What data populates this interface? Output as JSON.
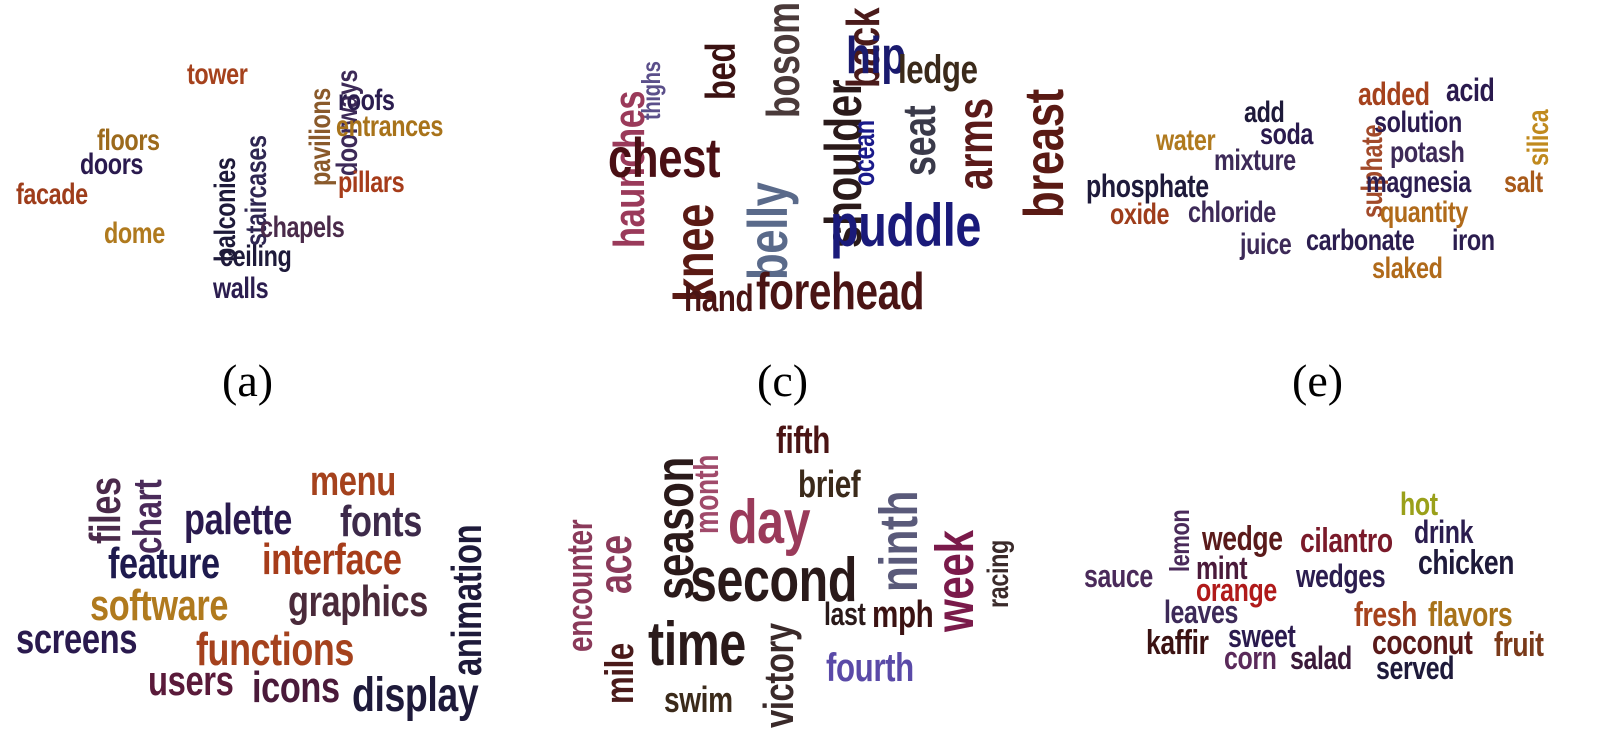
{
  "captions": {
    "a": "(a)",
    "c": "(c)",
    "e": "(e)"
  },
  "clouds": {
    "a": {
      "words": [
        {
          "text": "tower",
          "color": "#a5421d"
        },
        {
          "text": "pavilions",
          "color": "#8a5a2b"
        },
        {
          "text": "doorways",
          "color": "#3d2a58"
        },
        {
          "text": "roofs",
          "color": "#2b1d4f"
        },
        {
          "text": "entrances",
          "color": "#a8731a"
        },
        {
          "text": "floors",
          "color": "#9c6a1c"
        },
        {
          "text": "doors",
          "color": "#2a1a4e"
        },
        {
          "text": "balconies",
          "color": "#1e1a3a"
        },
        {
          "text": "staircases",
          "color": "#2f2752"
        },
        {
          "text": "pillars",
          "color": "#a63c1a"
        },
        {
          "text": "facade",
          "color": "#9e3d1b"
        },
        {
          "text": "chapels",
          "color": "#4a2a4a"
        },
        {
          "text": "dome",
          "color": "#b07a1e"
        },
        {
          "text": "ceiling",
          "color": "#1e1a3a"
        },
        {
          "text": "walls",
          "color": "#2b1d4f"
        }
      ]
    },
    "c": {
      "words": [
        {
          "text": "thighs",
          "color": "#5b4f8a"
        },
        {
          "text": "bed",
          "color": "#3b1212"
        },
        {
          "text": "bosom",
          "color": "#4a3a3a"
        },
        {
          "text": "back",
          "color": "#4a1a1a"
        },
        {
          "text": "hip",
          "color": "#1a1a6e"
        },
        {
          "text": "ledge",
          "color": "#3b2a1a"
        },
        {
          "text": "haunches",
          "color": "#9a3a5a"
        },
        {
          "text": "chest",
          "color": "#4a0f14"
        },
        {
          "text": "shoulder",
          "color": "#2a1a1a"
        },
        {
          "text": "ocean",
          "color": "#1a1a8a"
        },
        {
          "text": "seat",
          "color": "#3a3a4a"
        },
        {
          "text": "arms",
          "color": "#5a1a1a"
        },
        {
          "text": "breast",
          "color": "#5a1a14"
        },
        {
          "text": "knee",
          "color": "#5a1a14"
        },
        {
          "text": "belly",
          "color": "#5a6a8a"
        },
        {
          "text": "puddle",
          "color": "#1a1a7a"
        },
        {
          "text": "hand",
          "color": "#4a1414"
        },
        {
          "text": "forehead",
          "color": "#4a1414"
        }
      ]
    },
    "e": {
      "words": [
        {
          "text": "add",
          "color": "#1e1a3a"
        },
        {
          "text": "sulphate",
          "color": "#a24a2a"
        },
        {
          "text": "added",
          "color": "#a5421d"
        },
        {
          "text": "acid",
          "color": "#2a1a4e"
        },
        {
          "text": "water",
          "color": "#b07a1e"
        },
        {
          "text": "soda",
          "color": "#2a1a4e"
        },
        {
          "text": "solution",
          "color": "#2a1a4e"
        },
        {
          "text": "silica",
          "color": "#c08a1e"
        },
        {
          "text": "mixture",
          "color": "#3d2a58"
        },
        {
          "text": "potash",
          "color": "#3d2a58"
        },
        {
          "text": "phosphate",
          "color": "#1e1a3a"
        },
        {
          "text": "magnesia",
          "color": "#2b1d4f"
        },
        {
          "text": "salt",
          "color": "#a85a1a"
        },
        {
          "text": "oxide",
          "color": "#9e3d1b"
        },
        {
          "text": "chloride",
          "color": "#3d2a58"
        },
        {
          "text": "quantity",
          "color": "#b06a1a"
        },
        {
          "text": "juice",
          "color": "#3d2a58"
        },
        {
          "text": "carbonate",
          "color": "#2b1d4f"
        },
        {
          "text": "iron",
          "color": "#2b1d4f"
        },
        {
          "text": "slaked",
          "color": "#b06a1a"
        }
      ]
    },
    "b": {
      "words": [
        {
          "text": "files",
          "color": "#4a2a4a"
        },
        {
          "text": "chart",
          "color": "#4a2a5a"
        },
        {
          "text": "menu",
          "color": "#a5421d"
        },
        {
          "text": "palette",
          "color": "#2a1a4e"
        },
        {
          "text": "fonts",
          "color": "#3d2a4a"
        },
        {
          "text": "animation",
          "color": "#1e1a3a"
        },
        {
          "text": "feature",
          "color": "#1e1a4e"
        },
        {
          "text": "interface",
          "color": "#a63c1a"
        },
        {
          "text": "software",
          "color": "#b07a1e"
        },
        {
          "text": "graphics",
          "color": "#4a2a3a"
        },
        {
          "text": "screens",
          "color": "#2a1a4e"
        },
        {
          "text": "functions",
          "color": "#a5421d"
        },
        {
          "text": "users",
          "color": "#5a1a3a"
        },
        {
          "text": "icons",
          "color": "#4a1a3a"
        },
        {
          "text": "display",
          "color": "#1e1a3a"
        }
      ]
    },
    "d": {
      "words": [
        {
          "text": "encounter",
          "color": "#8a3a5a"
        },
        {
          "text": "ace",
          "color": "#8a3a5a"
        },
        {
          "text": "season",
          "color": "#2a1a1a"
        },
        {
          "text": "month",
          "color": "#a04a6a"
        },
        {
          "text": "fifth",
          "color": "#4a1414"
        },
        {
          "text": "brief",
          "color": "#3b2a1a"
        },
        {
          "text": "day",
          "color": "#9a3a5a"
        },
        {
          "text": "ninth",
          "color": "#5a5a7a"
        },
        {
          "text": "week",
          "color": "#7a1a4a"
        },
        {
          "text": "racing",
          "color": "#3a2a2a"
        },
        {
          "text": "second",
          "color": "#2a1a1a"
        },
        {
          "text": "last",
          "color": "#2a1a1a"
        },
        {
          "text": "mph",
          "color": "#3b1212"
        },
        {
          "text": "mile",
          "color": "#4a1a1a"
        },
        {
          "text": "time",
          "color": "#2a1a1a"
        },
        {
          "text": "victory",
          "color": "#3a2a2a"
        },
        {
          "text": "fourth",
          "color": "#5a4aa8"
        },
        {
          "text": "swim",
          "color": "#3b2a1a"
        }
      ]
    },
    "f": {
      "words": [
        {
          "text": "hot",
          "color": "#9aa01a"
        },
        {
          "text": "lemon",
          "color": "#4a2a5a"
        },
        {
          "text": "wedge",
          "color": "#5a1a1a"
        },
        {
          "text": "cilantro",
          "color": "#7a1a2a"
        },
        {
          "text": "drink",
          "color": "#2b1d4f"
        },
        {
          "text": "chicken",
          "color": "#1e1a3a"
        },
        {
          "text": "sauce",
          "color": "#4a2a5a"
        },
        {
          "text": "mint",
          "color": "#4a1a3a"
        },
        {
          "text": "orange",
          "color": "#b01a1a"
        },
        {
          "text": "wedges",
          "color": "#2b1d4f"
        },
        {
          "text": "leaves",
          "color": "#3d2a58"
        },
        {
          "text": "fresh",
          "color": "#a5421d"
        },
        {
          "text": "flavors",
          "color": "#a8731a"
        },
        {
          "text": "kaffir",
          "color": "#3b1212"
        },
        {
          "text": "sweet",
          "color": "#2a1a4e"
        },
        {
          "text": "coconut",
          "color": "#5a1a1a"
        },
        {
          "text": "fruit",
          "color": "#7a3a1a"
        },
        {
          "text": "corn",
          "color": "#5a2a5a"
        },
        {
          "text": "salad",
          "color": "#3b1a3a"
        },
        {
          "text": "served",
          "color": "#1e1a3a"
        }
      ]
    }
  }
}
